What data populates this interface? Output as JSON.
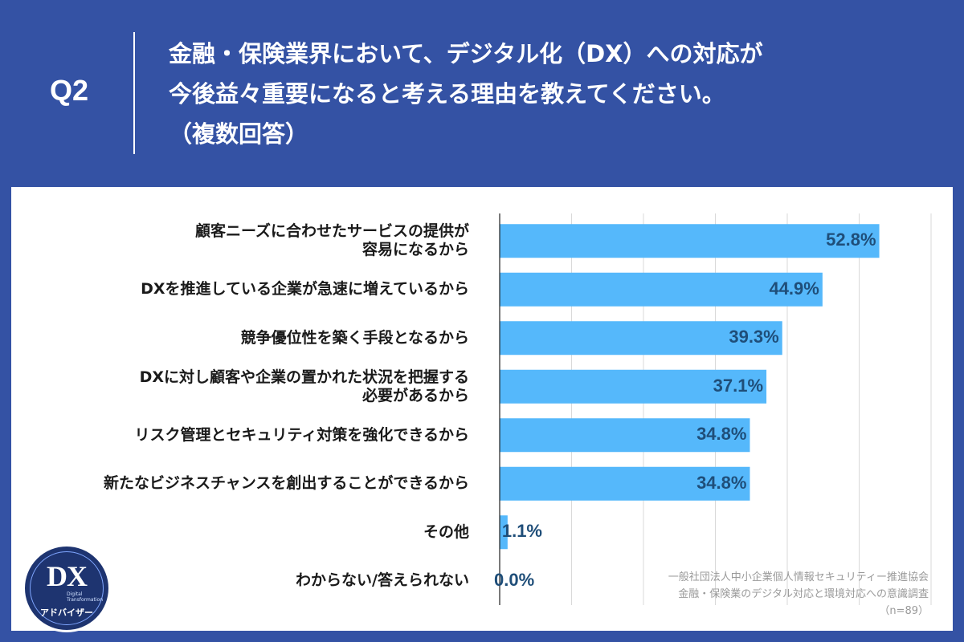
{
  "header": {
    "question_label": "Q2",
    "title_lines": [
      "金融・保険業界において、デジタル化（DX）への対応が",
      "今後益々重要になると考える理由を教えてください。",
      "（複数回答）"
    ]
  },
  "chart_data": {
    "type": "bar",
    "orientation": "horizontal",
    "categories": [
      [
        "顧客ニーズに合わせたサービスの提供が",
        "容易になるから"
      ],
      [
        "DXを推進している企業が急速に増えているから"
      ],
      [
        "競争優位性を築く手段となるから"
      ],
      [
        "DXに対し顧客や企業の置かれた状況を把握する",
        "必要があるから"
      ],
      [
        "リスク管理とセキュリティ対策を強化できるから"
      ],
      [
        "新たなビジネスチャンスを創出することができるから"
      ],
      [
        "その他"
      ],
      [
        "わからない/答えられない"
      ]
    ],
    "values": [
      52.8,
      44.9,
      39.3,
      37.1,
      34.8,
      34.8,
      1.1,
      0.0
    ],
    "value_labels": [
      "52.8%",
      "44.9%",
      "39.3%",
      "37.1%",
      "34.8%",
      "34.8%",
      "1.1%",
      "0.0%"
    ],
    "xlim": [
      0,
      60
    ],
    "grid": true,
    "colors": {
      "bar": "#55b8fb",
      "value_text": "#1f4e79",
      "grid": "#d9d9d9",
      "axis": "#222222"
    }
  },
  "footnote": {
    "lines": [
      "一般社団法人中小企業個人情報セキュリティー推進協会",
      "金融・保険業のデジタル対応と環境対応への意識調査",
      "（n=89）"
    ]
  },
  "logo": {
    "mark": "DX",
    "subtext_lines": [
      "Digital",
      "Transformation"
    ],
    "name": "アドバイザー"
  }
}
